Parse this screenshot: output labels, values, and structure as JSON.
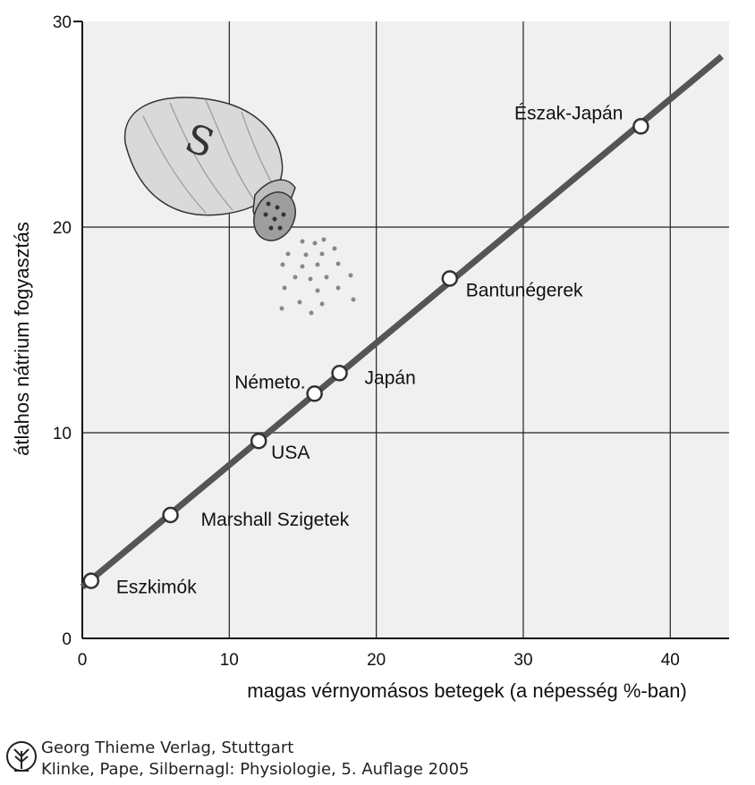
{
  "chart_data": {
    "type": "line",
    "xlabel": "magas vérnyomásos betegek (a népesség %-ban)",
    "ylabel": "átlahos nátrium fogyasztás",
    "xlim": [
      0,
      44
    ],
    "ylim": [
      0,
      30
    ],
    "x_ticks": [
      "0",
      "10",
      "20",
      "30",
      "40"
    ],
    "y_ticks": [
      "0",
      "10",
      "20",
      "30"
    ],
    "grid": true,
    "trend_line": {
      "x": [
        0,
        43.5
      ],
      "y": [
        2.5,
        28.3
      ]
    },
    "points": [
      {
        "label": "Eszkimók",
        "x": 0.6,
        "y": 2.8
      },
      {
        "label": "Marshall Szigetek",
        "x": 6,
        "y": 6
      },
      {
        "label": "USA",
        "x": 12,
        "y": 9.6
      },
      {
        "label": "Németo.",
        "x": 15.8,
        "y": 11.9
      },
      {
        "label": "Japán",
        "x": 17.5,
        "y": 12.9
      },
      {
        "label": "Bantunégerek",
        "x": 25,
        "y": 17.5
      },
      {
        "label": "Észak-Japán",
        "x": 38,
        "y": 24.9
      }
    ],
    "illustration": "salt-shaker",
    "illustration_text": "S"
  },
  "credit": {
    "line1": "Georg Thieme Verlag, Stuttgart",
    "line2": "Klinke, Pape, Silbernagl: Physiologie, 5. Auflage 2005"
  }
}
